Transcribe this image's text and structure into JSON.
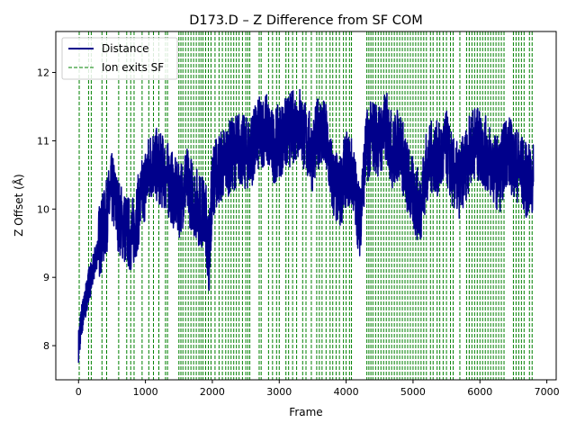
{
  "chart_data": {
    "type": "line",
    "title": "D173.D – Z Difference from SF COM",
    "xlabel": "Frame",
    "ylabel": "Z Offset (Å)",
    "xlim": [
      -340,
      7140
    ],
    "ylim": [
      7.5,
      12.6
    ],
    "x_ticks": [
      0,
      1000,
      2000,
      3000,
      4000,
      5000,
      6000,
      7000
    ],
    "y_ticks": [
      8,
      9,
      10,
      11,
      12
    ],
    "x_tick_labels": [
      "0",
      "1000",
      "2000",
      "3000",
      "4000",
      "5000",
      "6000",
      "7000"
    ],
    "y_tick_labels": [
      "8",
      "9",
      "10",
      "11",
      "12"
    ],
    "grid": false,
    "legend_position": "top-left",
    "legend": [
      {
        "label": "Distance",
        "style": "solid",
        "color": "#00008b"
      },
      {
        "label": "Ion exits SF",
        "style": "dashed",
        "color": "#008000"
      }
    ],
    "series": [
      {
        "name": "Distance",
        "color": "#00008b",
        "x": [
          0,
          50,
          100,
          150,
          200,
          300,
          400,
          500,
          600,
          700,
          800,
          900,
          1000,
          1100,
          1200,
          1300,
          1400,
          1500,
          1600,
          1700,
          1800,
          1900,
          1950,
          2000,
          2100,
          2200,
          2300,
          2400,
          2500,
          2600,
          2700,
          2800,
          2900,
          3000,
          3100,
          3200,
          3300,
          3400,
          3500,
          3600,
          3700,
          3800,
          3900,
          4000,
          4100,
          4200,
          4300,
          4400,
          4500,
          4600,
          4700,
          4800,
          4900,
          5000,
          5100,
          5200,
          5300,
          5400,
          5500,
          5600,
          5700,
          5800,
          5900,
          6000,
          6100,
          6200,
          6300,
          6400,
          6500,
          6600,
          6700,
          6800
        ],
        "y": [
          8.0,
          8.4,
          8.6,
          8.9,
          9.0,
          9.5,
          9.8,
          10.3,
          9.9,
          9.7,
          9.6,
          10.0,
          10.4,
          10.7,
          10.6,
          10.5,
          10.3,
          10.1,
          10.4,
          10.2,
          10.0,
          9.9,
          9.3,
          10.4,
          10.6,
          10.7,
          10.8,
          10.9,
          10.8,
          10.9,
          11.1,
          11.2,
          10.9,
          11.0,
          11.1,
          11.2,
          11.3,
          11.0,
          10.8,
          11.2,
          11.0,
          10.4,
          10.2,
          10.6,
          10.5,
          9.8,
          10.9,
          11.1,
          11.0,
          11.2,
          10.8,
          11.0,
          10.5,
          10.2,
          10.0,
          10.6,
          10.8,
          10.7,
          10.9,
          10.5,
          10.4,
          10.7,
          11.0,
          10.9,
          10.8,
          10.6,
          10.5,
          10.9,
          10.7,
          10.6,
          10.4,
          10.4
        ]
      }
    ],
    "event_lines": {
      "name": "Ion exits SF",
      "color": "#008000",
      "x": [
        10,
        150,
        190,
        350,
        420,
        600,
        720,
        780,
        830,
        950,
        1050,
        1120,
        1200,
        1300,
        1330,
        1500,
        1530,
        1560,
        1600,
        1640,
        1680,
        1720,
        1760,
        1800,
        1830,
        1860,
        1900,
        1940,
        1980,
        2040,
        2100,
        2150,
        2200,
        2240,
        2280,
        2320,
        2360,
        2400,
        2450,
        2500,
        2530,
        2560,
        2700,
        2730,
        2840,
        2900,
        2960,
        3000,
        3100,
        3140,
        3200,
        3260,
        3350,
        3400,
        3480,
        3560,
        3600,
        3640,
        3700,
        3760,
        3800,
        3850,
        3900,
        3960,
        4000,
        4050,
        4080,
        4310,
        4340,
        4370,
        4400,
        4440,
        4480,
        4520,
        4560,
        4600,
        4640,
        4680,
        4720,
        4760,
        4800,
        4840,
        4880,
        4920,
        4960,
        5000,
        5040,
        5080,
        5120,
        5160,
        5200,
        5260,
        5300,
        5360,
        5400,
        5450,
        5500,
        5560,
        5600,
        5700,
        5800,
        5840,
        5880,
        5920,
        5960,
        6000,
        6040,
        6080,
        6120,
        6160,
        6200,
        6240,
        6280,
        6320,
        6360,
        6500,
        6540,
        6580,
        6620,
        6660,
        6740,
        6780
      ]
    }
  }
}
